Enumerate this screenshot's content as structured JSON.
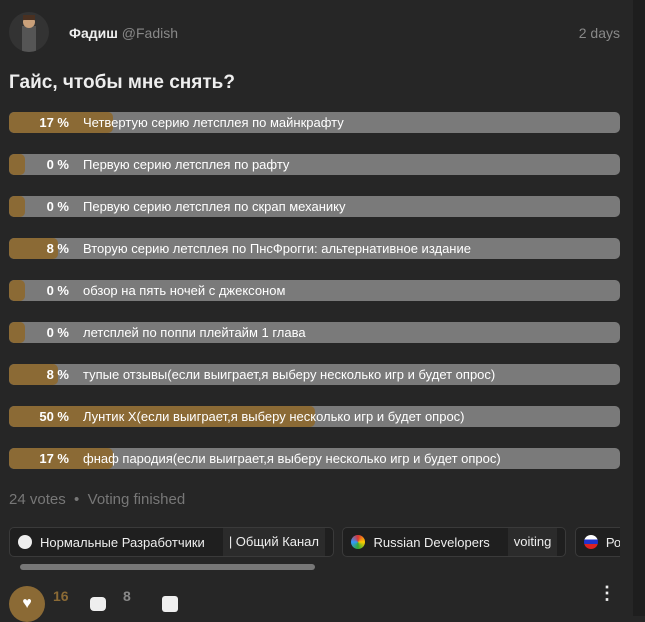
{
  "post": {
    "author": "Фадиш",
    "handle": "@Fadish",
    "time": "2 days",
    "title": "Гайс, чтобы мне снять?"
  },
  "poll": {
    "options": [
      {
        "pct": "17 %",
        "value": 17,
        "label": "Четвертую серию летсплея по майнкрафту"
      },
      {
        "pct": "0 %",
        "value": 0,
        "label": "Первую серию летсплея по рафту"
      },
      {
        "pct": "0 %",
        "value": 0,
        "label": "Первую серию летсплея по скрап механику"
      },
      {
        "pct": "8 %",
        "value": 8,
        "label": "Вторую серию летсплея по ПнсФрогги: альтернативное издание"
      },
      {
        "pct": "0 %",
        "value": 0,
        "label": "обзор на пять ночей с джексоном"
      },
      {
        "pct": "0 %",
        "value": 0,
        "label": "летсплей по поппи плейтайм 1 глава"
      },
      {
        "pct": "8 %",
        "value": 8,
        "label": "тупые отзывы(если выиграет,я выберу несколько игр и будет опрос)"
      },
      {
        "pct": "50 %",
        "value": 50,
        "label": "Лунтик Х(если выиграет,я выберу несколько игр и будет опрос)"
      },
      {
        "pct": "17 %",
        "value": 17,
        "label": "фнаф пародия(если выиграет,я выберу несколько игр и будет опрос)"
      }
    ],
    "votes": "24 votes",
    "status": "Voting finished"
  },
  "chips": [
    {
      "name": "Нормальные Разработчики",
      "sub": "| Общий Канал"
    },
    {
      "name": "Russian Developers",
      "sub": "voiting"
    },
    {
      "name": "Росс",
      "sub": ""
    }
  ],
  "actions": {
    "likes": "16",
    "comments": "8"
  },
  "colors": {
    "fill": "#8b6a35",
    "track": "#7a7a7a",
    "bg": "#262626"
  }
}
